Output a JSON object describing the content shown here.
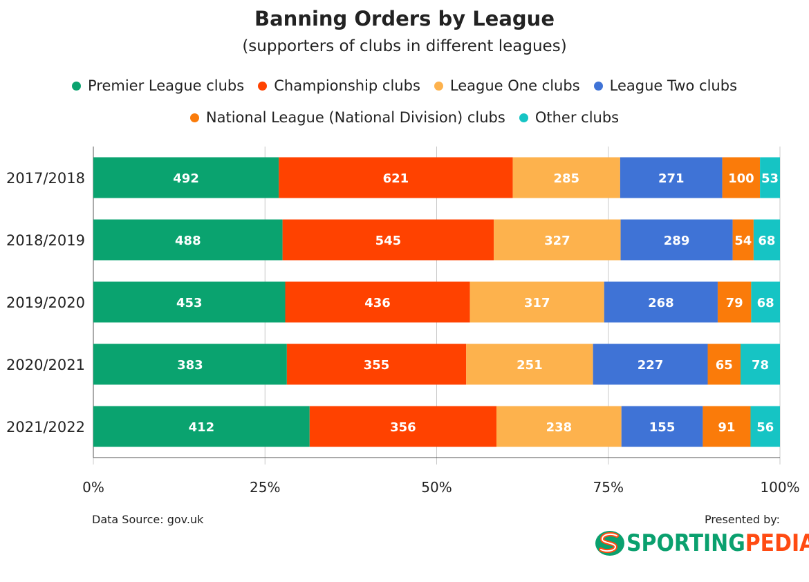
{
  "chart_data": {
    "type": "bar",
    "orientation": "horizontal",
    "stacked": "percent",
    "title": "Banning Orders by League",
    "subtitle": "(supporters of clubs in different leagues)",
    "categories": [
      "2017/2018",
      "2018/2019",
      "2019/2020",
      "2020/2021",
      "2021/2022"
    ],
    "series": [
      {
        "name": "Premier League clubs",
        "color": "#0aa36f",
        "values": [
          492,
          488,
          453,
          383,
          412
        ]
      },
      {
        "name": "Championship clubs",
        "color": "#ff4200",
        "values": [
          621,
          545,
          436,
          355,
          356
        ]
      },
      {
        "name": "League One clubs",
        "color": "#fdb24d",
        "values": [
          285,
          327,
          317,
          251,
          238
        ]
      },
      {
        "name": "League Two clubs",
        "color": "#3f73d6",
        "values": [
          271,
          289,
          268,
          227,
          155
        ]
      },
      {
        "name": "National League (National Division) clubs",
        "color": "#fa7b0a",
        "values": [
          100,
          54,
          79,
          65,
          91
        ]
      },
      {
        "name": "Other clubs",
        "color": "#16c4c4",
        "values": [
          53,
          68,
          68,
          78,
          56
        ]
      }
    ],
    "x_ticks": [
      "0%",
      "25%",
      "50%",
      "75%",
      "100%"
    ],
    "xlim": [
      0,
      100
    ],
    "grid": true,
    "legend_position": "top"
  },
  "footer": {
    "source": "Data Source: gov.uk",
    "presented_by": "Presented by:",
    "logo_text_part1": "SPORTING",
    "logo_text_part2": "PEDIA"
  }
}
